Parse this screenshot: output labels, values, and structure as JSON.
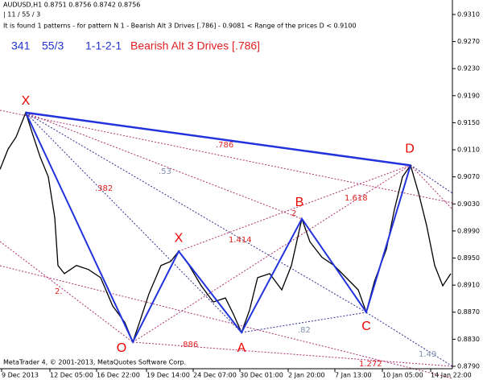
{
  "header": {
    "symbol": "AUDUSD,H1  0.8751 0.8756 0.8742 0.8756",
    "params": "| 11 / 55 / 3",
    "info": "It is found 1 patterns  -  for pattern N 1 - Bearish Alt 3 Drives [.786] - 0.9081 < Range of the prices D < 0.9100",
    "count": "341",
    "ratio_count": "55/3",
    "code": "1-1-2-1",
    "pattern_name": "Bearish Alt 3 Drives [.786]"
  },
  "footer": "MetaTrader 4, © 2001-2013, MetaQuotes Software Corp.",
  "chart_data": {
    "type": "line",
    "color": "#000000",
    "x": [
      0,
      10,
      20,
      32,
      40,
      50,
      60,
      68,
      72,
      80,
      95,
      110,
      125,
      140,
      155,
      165,
      175,
      185,
      200,
      212,
      222,
      235,
      250,
      265,
      280,
      290,
      300,
      310,
      320,
      335,
      350,
      362,
      375,
      385,
      400,
      415,
      430,
      445,
      455,
      465,
      480,
      490,
      500,
      510,
      520,
      530,
      540,
      550,
      560
    ],
    "values": [
      0.9081,
      0.9111,
      0.9129,
      0.9165,
      0.9135,
      0.9099,
      0.907,
      0.901,
      0.8939,
      0.8927,
      0.8939,
      0.8933,
      0.8921,
      0.8879,
      0.8855,
      0.8826,
      0.8861,
      0.8897,
      0.8939,
      0.8945,
      0.896,
      0.8939,
      0.8909,
      0.8885,
      0.8891,
      0.8867,
      0.884,
      0.8873,
      0.8921,
      0.8927,
      0.8903,
      0.8939,
      0.9008,
      0.8974,
      0.8951,
      0.8939,
      0.8921,
      0.8903,
      0.887,
      0.8915,
      0.8963,
      0.9022,
      0.907,
      0.9087,
      0.9046,
      0.8998,
      0.8939,
      0.8909,
      0.8927
    ],
    "xlim": [
      0,
      562
    ],
    "ylim": [
      0.87864,
      0.93314
    ],
    "xticks": [
      {
        "value": 2,
        "label": "9 Dec 2013"
      },
      {
        "value": 62,
        "label": "12 Dec 05:00"
      },
      {
        "value": 120,
        "label": "16 Dec 22:00"
      },
      {
        "value": 182,
        "label": "19 Dec 14:00"
      },
      {
        "value": 240,
        "label": "24 Dec 07:00"
      },
      {
        "value": 298,
        "label": "30 Dec 01:00"
      },
      {
        "value": 358,
        "label": "2 Jan 20:00"
      },
      {
        "value": 416,
        "label": "7 Jan 13:00"
      },
      {
        "value": 475,
        "label": "10 Jan 05:00"
      },
      {
        "value": 535,
        "label": "14 Jan 22:00"
      }
    ],
    "yticks": [
      {
        "value": 0.931,
        "label": "0.9310"
      },
      {
        "value": 0.927,
        "label": "0.9270"
      },
      {
        "value": 0.923,
        "label": "0.9230"
      },
      {
        "value": 0.919,
        "label": "0.9190"
      },
      {
        "value": 0.915,
        "label": "0.9150"
      },
      {
        "value": 0.911,
        "label": "0.9110"
      },
      {
        "value": 0.907,
        "label": "0.9070"
      },
      {
        "value": 0.903,
        "label": "0.9030"
      },
      {
        "value": 0.899,
        "label": "0.8990"
      },
      {
        "value": 0.895,
        "label": "0.8950"
      },
      {
        "value": 0.891,
        "label": "0.8910"
      },
      {
        "value": 0.887,
        "label": "0.8870"
      },
      {
        "value": 0.883,
        "label": "0.8830"
      },
      {
        "value": 0.879,
        "label": "0.8790"
      }
    ],
    "pattern": {
      "color": "#2233dd",
      "labels": [
        "X",
        "O",
        "X",
        "A",
        "B",
        "C",
        "D"
      ],
      "x": [
        32,
        165,
        222,
        300,
        375,
        455,
        510
      ],
      "values": [
        0.9165,
        0.8826,
        0.896,
        0.884,
        0.9008,
        0.887,
        0.9087
      ]
    },
    "ratios": [
      ".786",
      ".53",
      ".382",
      "1.618",
      "2",
      "1.414",
      "2.",
      ".886",
      ".82",
      "1.272",
      "1.49"
    ]
  }
}
